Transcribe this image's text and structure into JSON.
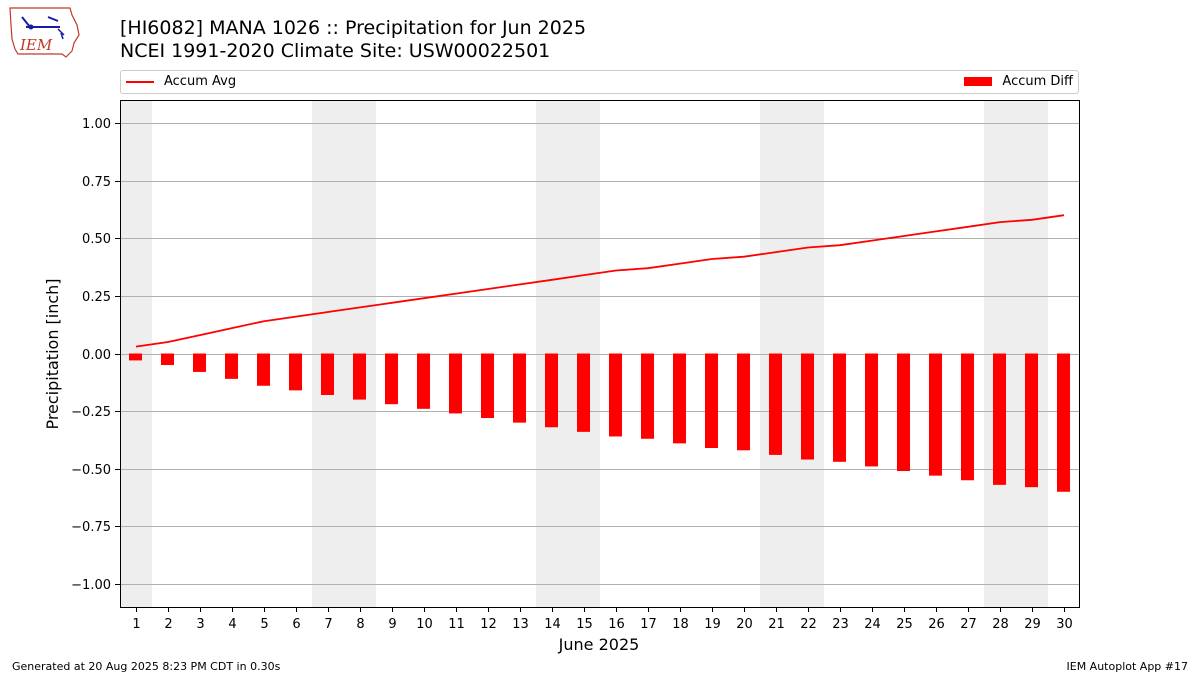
{
  "header": {
    "title_line1": "[HI6082] MANA 1026 :: Precipitation for Jun 2025",
    "title_line2": "NCEI 1991-2020 Climate Site: USW00022501"
  },
  "logo": {
    "text": "IEM"
  },
  "legend": {
    "line_label": "Accum Avg",
    "bar_label": "Accum Diff"
  },
  "footer": {
    "left": "Generated at 20 Aug 2025 8:23 PM CDT in 0.30s",
    "right": "IEM Autoplot App #17"
  },
  "colors": {
    "series": "#ff0000",
    "weekend_band": "#eeeeee",
    "grid": "#b0b0b0"
  },
  "chart_data": {
    "type": "bar",
    "xlabel": "June 2025",
    "ylabel": "Precipitation [inch]",
    "ylim": [
      -1.1,
      1.1
    ],
    "yticks": [
      1.0,
      0.75,
      0.5,
      0.25,
      0.0,
      -0.25,
      -0.5,
      -0.75,
      -1.0
    ],
    "ytick_labels": [
      "1.00",
      "0.75",
      "0.50",
      "0.25",
      "0.00",
      "−0.25",
      "−0.50",
      "−0.75",
      "−1.00"
    ],
    "categories": [
      "1",
      "2",
      "3",
      "4",
      "5",
      "6",
      "7",
      "8",
      "9",
      "10",
      "11",
      "12",
      "13",
      "14",
      "15",
      "16",
      "17",
      "18",
      "19",
      "20",
      "21",
      "22",
      "23",
      "24",
      "25",
      "26",
      "27",
      "28",
      "29",
      "30"
    ],
    "weekend_days": [
      1,
      7,
      8,
      14,
      15,
      21,
      22,
      28,
      29
    ],
    "grid": "horizontal",
    "series": [
      {
        "name": "Accum Avg",
        "kind": "line",
        "values": [
          0.03,
          0.05,
          0.08,
          0.11,
          0.14,
          0.16,
          0.18,
          0.2,
          0.22,
          0.24,
          0.26,
          0.28,
          0.3,
          0.32,
          0.34,
          0.36,
          0.37,
          0.39,
          0.41,
          0.42,
          0.44,
          0.46,
          0.47,
          0.49,
          0.51,
          0.53,
          0.55,
          0.57,
          0.58,
          0.6
        ]
      },
      {
        "name": "Accum Diff",
        "kind": "bar",
        "values": [
          -0.03,
          -0.05,
          -0.08,
          -0.11,
          -0.14,
          -0.16,
          -0.18,
          -0.2,
          -0.22,
          -0.24,
          -0.26,
          -0.28,
          -0.3,
          -0.32,
          -0.34,
          -0.36,
          -0.37,
          -0.39,
          -0.41,
          -0.42,
          -0.44,
          -0.46,
          -0.47,
          -0.49,
          -0.51,
          -0.53,
          -0.55,
          -0.57,
          -0.58,
          -0.6
        ]
      }
    ]
  }
}
